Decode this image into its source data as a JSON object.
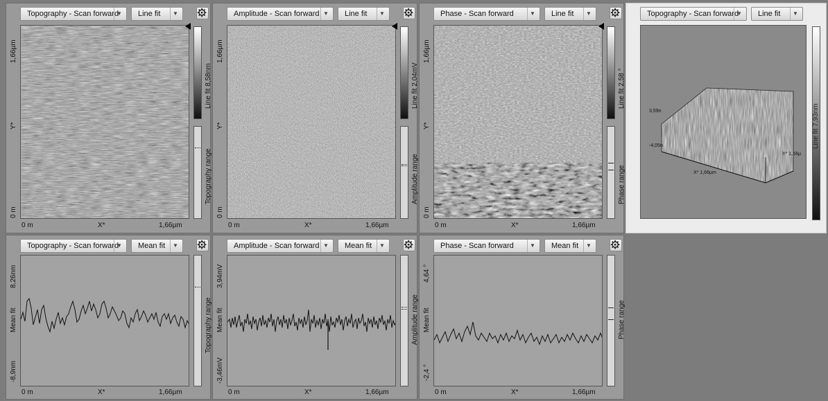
{
  "panels": {
    "topo_top": {
      "source": "Topography - Scan forward",
      "filter": "Line fit",
      "y_max": "1,66µm",
      "y_axis": "Y*",
      "y_min": "0 m",
      "x_min": "0 m",
      "x_axis": "X*",
      "x_max": "1,66µm",
      "scale_label": "Line fit 8,58nm",
      "range_label": "Topography range"
    },
    "amp_top": {
      "source": "Amplitude - Scan forward",
      "filter": "Line fit",
      "y_max": "1,66µm",
      "y_axis": "Y*",
      "y_min": "0 m",
      "x_min": "0 m",
      "x_axis": "X*",
      "x_max": "1,66µm",
      "scale_label": "Line fit 2,04mV",
      "range_label": "Amplitude range"
    },
    "phase_top": {
      "source": "Phase - Scan forward",
      "filter": "Line fit",
      "y_max": "1,66µm",
      "y_axis": "Y*",
      "y_min": "0 m",
      "x_min": "0 m",
      "x_axis": "X*",
      "x_max": "1,66µm",
      "scale_label": "Line fit 2,58 °",
      "range_label": "Phase range"
    },
    "topo_3d": {
      "source": "Topography - Scan forward",
      "filter": "Line fit",
      "z_max": "3,59n",
      "z_min": "-4,05n",
      "x_label": "X* 1,66µm",
      "y_label": "Y* 1,66µ",
      "scale_label": "Line fit 7,93nm"
    },
    "topo_line": {
      "source": "Topography - Scan forward",
      "filter": "Mean fit",
      "y_max": "8,26nm",
      "y_mid": "Mean fit",
      "y_min": "-8,9nm",
      "x_min": "0 m",
      "x_axis": "X*",
      "x_max": "1,66µm",
      "range_label": "Topography range"
    },
    "amp_line": {
      "source": "Amplitude - Scan forward",
      "filter": "Mean fit",
      "y_max": "3,94mV",
      "y_mid": "Mean fit",
      "y_min": "-3,46mV",
      "x_min": "0 m",
      "x_axis": "X*",
      "x_max": "1,66µm",
      "range_label": "Amplitude range"
    },
    "phase_line": {
      "source": "Phase - Scan forward",
      "filter": "Mean fit",
      "y_max": "4,64 °",
      "y_mid": "Mean fit",
      "y_min": "-2,4 °",
      "x_min": "0 m",
      "x_axis": "X*",
      "x_max": "1,66µm",
      "range_label": "Phase range"
    }
  },
  "colors": {
    "background": "#7c7c7c",
    "panel": "#9a9a9a",
    "selected_panel": "#ececec",
    "trace": "#111111"
  },
  "icons": {
    "settings": "gear-icon",
    "dropdown": "chevron-down-icon",
    "marker": "triangle-marker-icon"
  }
}
